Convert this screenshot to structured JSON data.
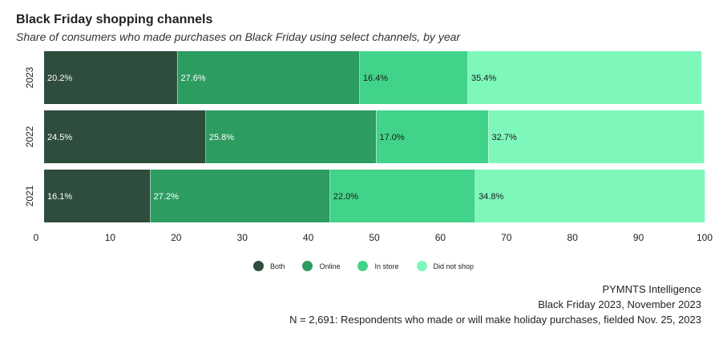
{
  "chart_data": {
    "type": "bar",
    "orientation": "horizontal",
    "stacked": true,
    "title": "Black Friday shopping channels",
    "subtitle": "Share of consumers who made purchases on Black Friday using select channels, by year",
    "categories": [
      "2023",
      "2022",
      "2021"
    ],
    "series": [
      {
        "name": "Both",
        "color": "#2e4d3d",
        "values": [
          20.2,
          24.5,
          16.1
        ],
        "labels": [
          "20.2%",
          "24.5%",
          "16.1%"
        ]
      },
      {
        "name": "Online",
        "color": "#2d9c61",
        "values": [
          27.6,
          25.8,
          27.2
        ],
        "labels": [
          "27.6%",
          "25.8%",
          "27.2%"
        ]
      },
      {
        "name": "In store",
        "color": "#42d38a",
        "values": [
          16.4,
          17.0,
          22.0
        ],
        "labels": [
          "16.4%",
          "17.0%",
          "22.0%"
        ]
      },
      {
        "name": "Did not shop",
        "color": "#7ef7bb",
        "values": [
          35.4,
          32.7,
          34.8
        ],
        "labels": [
          "35.4%",
          "32.7%",
          "34.8%"
        ]
      }
    ],
    "xlim": [
      0,
      100
    ],
    "xticks": [
      "0",
      "10",
      "20",
      "30",
      "40",
      "50",
      "60",
      "70",
      "80",
      "90",
      "100"
    ],
    "grid": false,
    "legend_position": "bottom"
  },
  "footer": {
    "source": "PYMNTS Intelligence",
    "report": "Black Friday 2023, November 2023",
    "note": "N = 2,691: Respondents who made or will make holiday purchases, fielded Nov. 25, 2023"
  }
}
